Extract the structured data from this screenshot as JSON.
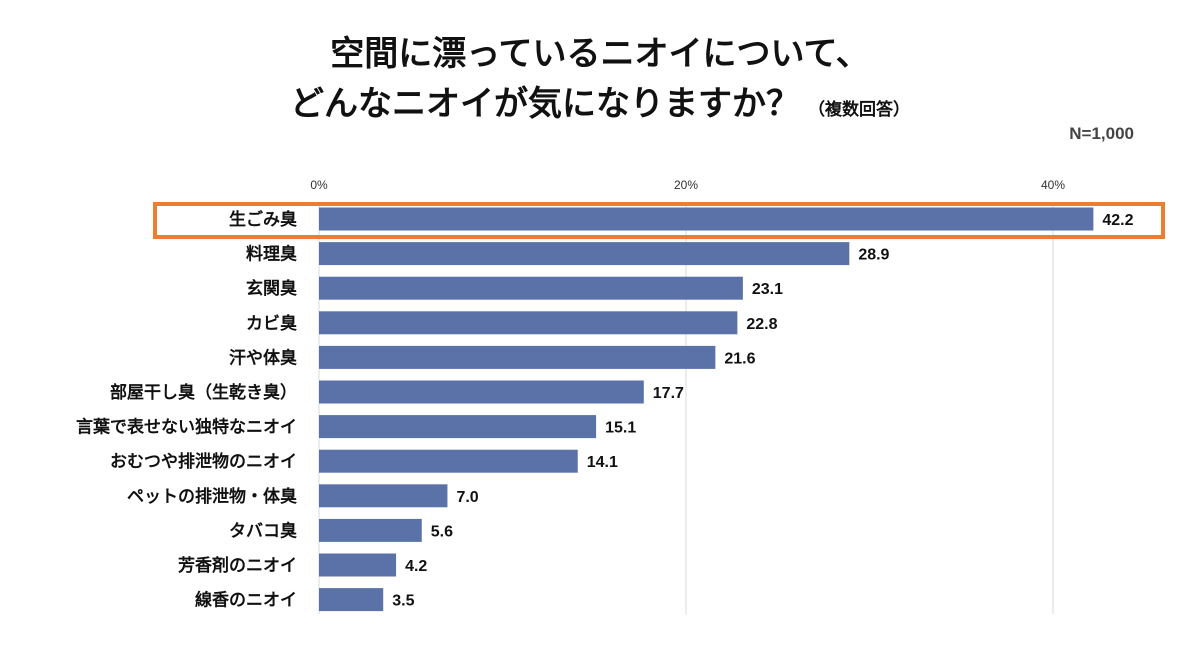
{
  "title_line1": "空間に漂っているニオイについて、",
  "title_line2": "どんなニオイが気になりますか？",
  "title_note": "（複数回答）",
  "sample_size": "N=1,000",
  "colors": {
    "bar": "#5a72a8",
    "highlight": "#ed7d31",
    "grid": "#d9d9d9"
  },
  "chart_data": {
    "type": "bar",
    "orientation": "horizontal",
    "categories": [
      "生ごみ臭",
      "料理臭",
      "玄関臭",
      "カビ臭",
      "汗や体臭",
      "部屋干し臭（生乾き臭）",
      "言葉で表せない独特なニオイ",
      "おむつや排泄物のニオイ",
      "ペットの排泄物・体臭",
      "タバコ臭",
      "芳香剤のニオイ",
      "線香のニオイ"
    ],
    "values": [
      42.2,
      28.9,
      23.1,
      22.8,
      21.6,
      17.7,
      15.1,
      14.1,
      7.0,
      5.6,
      4.2,
      3.5
    ],
    "value_labels": [
      "42.2",
      "28.9",
      "23.1",
      "22.8",
      "21.6",
      "17.7",
      "15.1",
      "14.1",
      "7.0",
      "5.6",
      "4.2",
      "3.5"
    ],
    "ticks": [
      0,
      20,
      40
    ],
    "tick_labels": [
      "0%",
      "20%",
      "40%"
    ],
    "xlim": [
      0,
      45
    ],
    "highlighted_category": "生ごみ臭"
  }
}
